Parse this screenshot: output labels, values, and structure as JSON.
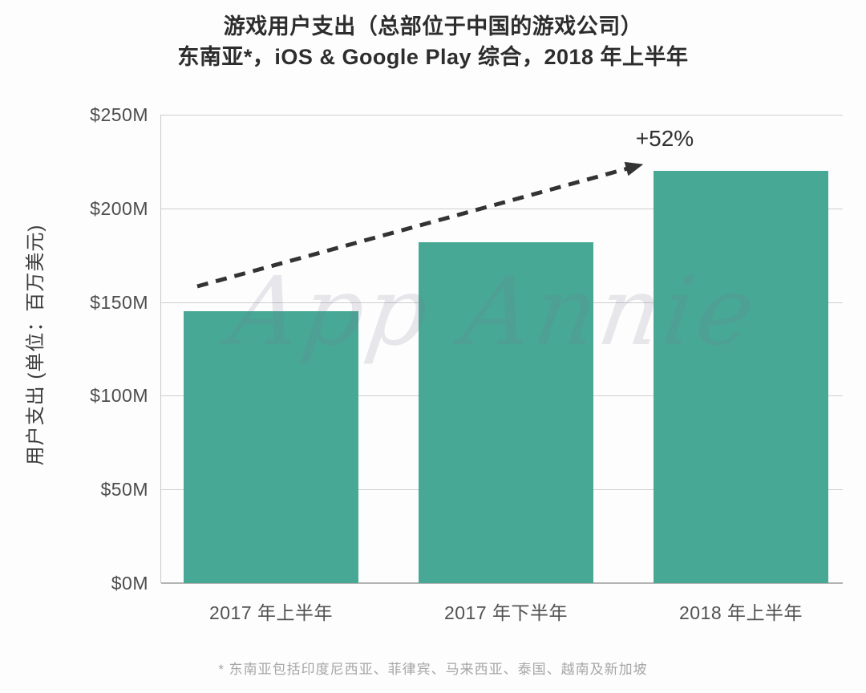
{
  "chart": {
    "title_line1": "游戏用户支出（总部位于中国的游戏公司）",
    "title_line2": "东南亚*，iOS & Google Play 综合，2018 年上半年",
    "y_axis_title": "用户支出 (单位：百万美元)",
    "watermark": "App Annie",
    "footnote": "* 东南亚包括印度尼西亚、菲律宾、马来西亚、泰国、越南及新加坡",
    "colors": {
      "bar": "#47a995",
      "arrow": "#333333",
      "gridline": "#cfcfcf",
      "axis_line": "#b3b3b3",
      "title_text": "#2d2d2d",
      "tick_text": "#4d4d4d",
      "footnote_text": "#a6a6a6"
    }
  },
  "chart_data": {
    "type": "bar",
    "categories": [
      "2017 年上半年",
      "2017 年下半年",
      "2018 年上半年"
    ],
    "values": [
      145,
      182,
      220
    ],
    "title": "游戏用户支出（总部位于中国的游戏公司）",
    "subtitle": "东南亚*，iOS & Google Play 综合，2018 年上半年",
    "xlabel": "",
    "ylabel": "用户支出 (单位：百万美元)",
    "ylim": [
      0,
      250
    ],
    "ytick_step": 50,
    "ytick_labels": [
      "$0M",
      "$50M",
      "$100M",
      "$150M",
      "$200M",
      "$250M"
    ],
    "grid": true,
    "legend": null,
    "annotation": {
      "text": "+52%",
      "from_category_index": 0,
      "to_category_index": 2,
      "style": "dashed-arrow"
    }
  }
}
